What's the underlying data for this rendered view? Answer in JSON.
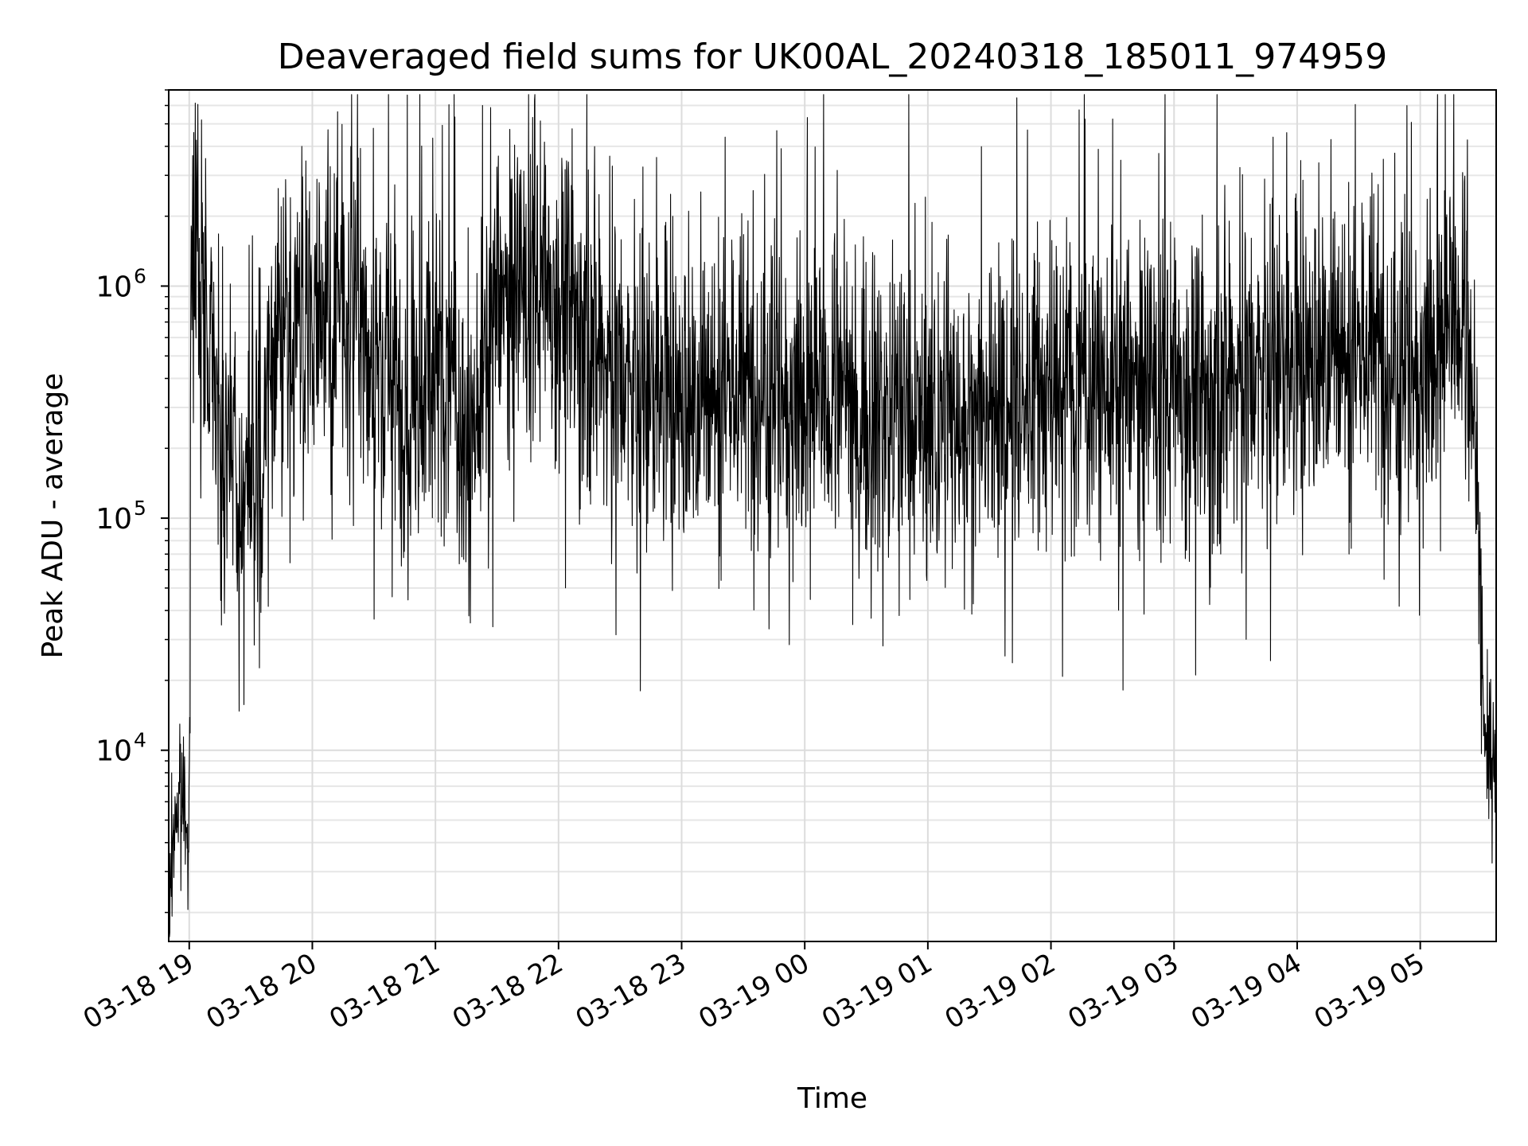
{
  "chart_data": {
    "type": "line",
    "title": "Deaveraged field sums for UK00AL_20240318_185011_974959",
    "xlabel": "Time",
    "ylabel": "Peak ADU - average",
    "yscale": "log",
    "ylim": [
      1500,
      7000000
    ],
    "xlim": [
      "03-18 18:50",
      "03-19 05:37"
    ],
    "grid": true,
    "line_color": "#000000",
    "xticks": [
      {
        "label": "03-18 19",
        "hours": 19
      },
      {
        "label": "03-18 20",
        "hours": 20
      },
      {
        "label": "03-18 21",
        "hours": 21
      },
      {
        "label": "03-18 22",
        "hours": 22
      },
      {
        "label": "03-18 23",
        "hours": 23
      },
      {
        "label": "03-19 00",
        "hours": 24
      },
      {
        "label": "03-19 01",
        "hours": 25
      },
      {
        "label": "03-19 02",
        "hours": 26
      },
      {
        "label": "03-19 03",
        "hours": 27
      },
      {
        "label": "03-19 04",
        "hours": 28
      },
      {
        "label": "03-19 05",
        "hours": 29
      }
    ],
    "yticks": [
      {
        "value": 10000,
        "base": "10",
        "exp": "4"
      },
      {
        "value": 100000,
        "base": "10",
        "exp": "5"
      },
      {
        "value": 1000000,
        "base": "10",
        "exp": "6"
      }
    ],
    "series": [
      {
        "x": [
          "03-18 18:50",
          "03-18 18:53",
          "03-18 18:58",
          "03-18 19:00",
          "03-18 19:01",
          "03-18 19:03",
          "03-18 19:05",
          "03-18 19:07",
          "03-18 19:10",
          "03-18 19:15",
          "03-18 19:20",
          "03-18 19:25",
          "03-18 19:30",
          "03-18 19:35",
          "03-18 19:40",
          "03-18 19:45",
          "03-18 19:50",
          "03-18 20:00",
          "03-18 20:10",
          "03-18 20:20",
          "03-18 20:30",
          "03-18 20:40",
          "03-18 20:45",
          "03-18 20:50",
          "03-18 21:00",
          "03-18 21:10",
          "03-18 21:15",
          "03-18 21:20",
          "03-18 21:30",
          "03-18 21:40",
          "03-18 21:50",
          "03-18 22:00",
          "03-18 22:10",
          "03-18 22:20",
          "03-18 22:30",
          "03-18 22:40",
          "03-18 22:50",
          "03-18 23:00",
          "03-18 23:10",
          "03-18 23:20",
          "03-18 23:30",
          "03-18 23:40",
          "03-18 23:50",
          "03-19 00:00",
          "03-19 00:15",
          "03-19 00:30",
          "03-19 00:45",
          "03-19 01:00",
          "03-19 01:15",
          "03-19 01:30",
          "03-19 01:45",
          "03-19 02:00",
          "03-19 02:15",
          "03-19 02:30",
          "03-19 02:45",
          "03-19 03:00",
          "03-19 03:15",
          "03-19 03:30",
          "03-19 03:45",
          "03-19 04:00",
          "03-19 04:15",
          "03-19 04:30",
          "03-19 04:45",
          "03-19 05:00",
          "03-19 05:10",
          "03-19 05:20",
          "03-19 05:25",
          "03-19 05:28",
          "03-19 05:30",
          "03-19 05:32",
          "03-19 05:35",
          "03-19 05:37"
        ],
        "y": [
          2000,
          5500,
          6000,
          5000,
          1000000,
          1500000,
          1100000,
          750000,
          650000,
          250000,
          180000,
          140000,
          130000,
          120000,
          500000,
          900000,
          600000,
          800000,
          700000,
          800000,
          500000,
          650000,
          150000,
          350000,
          450000,
          400000,
          150000,
          300000,
          800000,
          900000,
          1100000,
          900000,
          800000,
          500000,
          400000,
          300000,
          350000,
          300000,
          300000,
          400000,
          350000,
          400000,
          350000,
          300000,
          350000,
          280000,
          300000,
          250000,
          280000,
          250000,
          300000,
          350000,
          400000,
          350000,
          350000,
          400000,
          350000,
          400000,
          400000,
          450000,
          500000,
          550000,
          500000,
          450000,
          500000,
          900000,
          300000,
          100000,
          30000,
          8000,
          10000,
          12000
        ]
      }
    ]
  }
}
